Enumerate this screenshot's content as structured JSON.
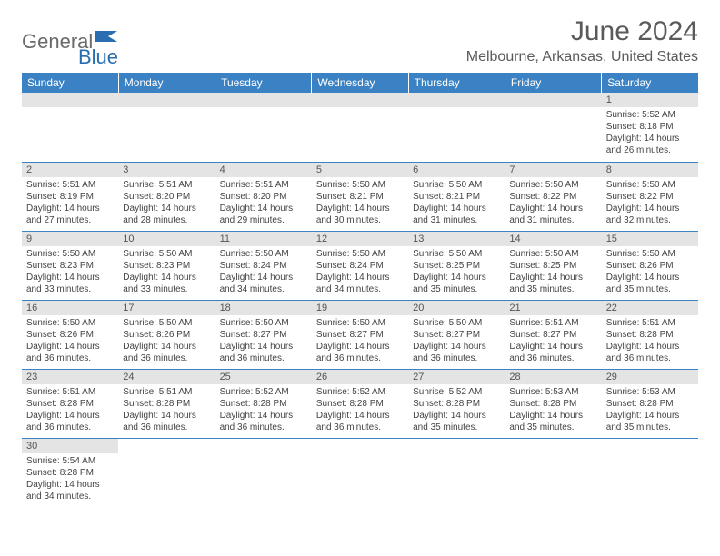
{
  "logo": {
    "general": "General",
    "blue": "Blue"
  },
  "title": "June 2024",
  "location": "Melbourne, Arkansas, United States",
  "colors": {
    "header_bg": "#3b82c4",
    "header_text": "#ffffff",
    "daynum_bg": "#e4e4e4",
    "border": "#3b82c4",
    "logo_blue": "#2a6db0"
  },
  "dayHeaders": [
    "Sunday",
    "Monday",
    "Tuesday",
    "Wednesday",
    "Thursday",
    "Friday",
    "Saturday"
  ],
  "weeks": [
    [
      null,
      null,
      null,
      null,
      null,
      null,
      {
        "n": "1",
        "rise": "5:52 AM",
        "set": "8:18 PM",
        "dl": "14 hours and 26 minutes."
      }
    ],
    [
      {
        "n": "2",
        "rise": "5:51 AM",
        "set": "8:19 PM",
        "dl": "14 hours and 27 minutes."
      },
      {
        "n": "3",
        "rise": "5:51 AM",
        "set": "8:20 PM",
        "dl": "14 hours and 28 minutes."
      },
      {
        "n": "4",
        "rise": "5:51 AM",
        "set": "8:20 PM",
        "dl": "14 hours and 29 minutes."
      },
      {
        "n": "5",
        "rise": "5:50 AM",
        "set": "8:21 PM",
        "dl": "14 hours and 30 minutes."
      },
      {
        "n": "6",
        "rise": "5:50 AM",
        "set": "8:21 PM",
        "dl": "14 hours and 31 minutes."
      },
      {
        "n": "7",
        "rise": "5:50 AM",
        "set": "8:22 PM",
        "dl": "14 hours and 31 minutes."
      },
      {
        "n": "8",
        "rise": "5:50 AM",
        "set": "8:22 PM",
        "dl": "14 hours and 32 minutes."
      }
    ],
    [
      {
        "n": "9",
        "rise": "5:50 AM",
        "set": "8:23 PM",
        "dl": "14 hours and 33 minutes."
      },
      {
        "n": "10",
        "rise": "5:50 AM",
        "set": "8:23 PM",
        "dl": "14 hours and 33 minutes."
      },
      {
        "n": "11",
        "rise": "5:50 AM",
        "set": "8:24 PM",
        "dl": "14 hours and 34 minutes."
      },
      {
        "n": "12",
        "rise": "5:50 AM",
        "set": "8:24 PM",
        "dl": "14 hours and 34 minutes."
      },
      {
        "n": "13",
        "rise": "5:50 AM",
        "set": "8:25 PM",
        "dl": "14 hours and 35 minutes."
      },
      {
        "n": "14",
        "rise": "5:50 AM",
        "set": "8:25 PM",
        "dl": "14 hours and 35 minutes."
      },
      {
        "n": "15",
        "rise": "5:50 AM",
        "set": "8:26 PM",
        "dl": "14 hours and 35 minutes."
      }
    ],
    [
      {
        "n": "16",
        "rise": "5:50 AM",
        "set": "8:26 PM",
        "dl": "14 hours and 36 minutes."
      },
      {
        "n": "17",
        "rise": "5:50 AM",
        "set": "8:26 PM",
        "dl": "14 hours and 36 minutes."
      },
      {
        "n": "18",
        "rise": "5:50 AM",
        "set": "8:27 PM",
        "dl": "14 hours and 36 minutes."
      },
      {
        "n": "19",
        "rise": "5:50 AM",
        "set": "8:27 PM",
        "dl": "14 hours and 36 minutes."
      },
      {
        "n": "20",
        "rise": "5:50 AM",
        "set": "8:27 PM",
        "dl": "14 hours and 36 minutes."
      },
      {
        "n": "21",
        "rise": "5:51 AM",
        "set": "8:27 PM",
        "dl": "14 hours and 36 minutes."
      },
      {
        "n": "22",
        "rise": "5:51 AM",
        "set": "8:28 PM",
        "dl": "14 hours and 36 minutes."
      }
    ],
    [
      {
        "n": "23",
        "rise": "5:51 AM",
        "set": "8:28 PM",
        "dl": "14 hours and 36 minutes."
      },
      {
        "n": "24",
        "rise": "5:51 AM",
        "set": "8:28 PM",
        "dl": "14 hours and 36 minutes."
      },
      {
        "n": "25",
        "rise": "5:52 AM",
        "set": "8:28 PM",
        "dl": "14 hours and 36 minutes."
      },
      {
        "n": "26",
        "rise": "5:52 AM",
        "set": "8:28 PM",
        "dl": "14 hours and 36 minutes."
      },
      {
        "n": "27",
        "rise": "5:52 AM",
        "set": "8:28 PM",
        "dl": "14 hours and 35 minutes."
      },
      {
        "n": "28",
        "rise": "5:53 AM",
        "set": "8:28 PM",
        "dl": "14 hours and 35 minutes."
      },
      {
        "n": "29",
        "rise": "5:53 AM",
        "set": "8:28 PM",
        "dl": "14 hours and 35 minutes."
      }
    ],
    [
      {
        "n": "30",
        "rise": "5:54 AM",
        "set": "8:28 PM",
        "dl": "14 hours and 34 minutes."
      },
      null,
      null,
      null,
      null,
      null,
      null
    ]
  ],
  "labels": {
    "sunrise": "Sunrise: ",
    "sunset": "Sunset: ",
    "daylight": "Daylight: "
  }
}
